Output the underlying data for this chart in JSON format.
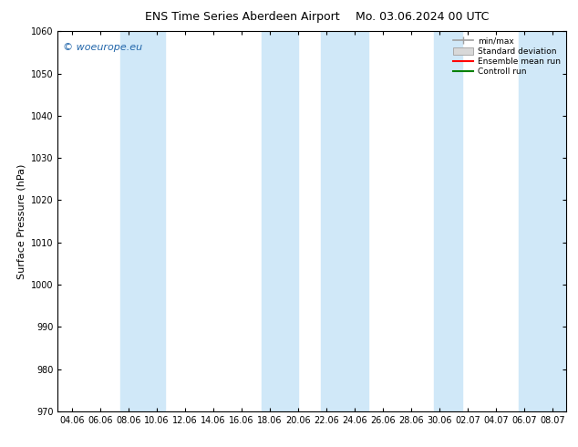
{
  "title_left": "ENS Time Series Aberdeen Airport",
  "title_right": "Mo. 03.06.2024 00 UTC",
  "ylabel": "Surface Pressure (hPa)",
  "ylim": [
    970,
    1060
  ],
  "yticks": [
    970,
    980,
    990,
    1000,
    1010,
    1020,
    1030,
    1040,
    1050,
    1060
  ],
  "xtick_labels": [
    "04.06",
    "06.06",
    "08.06",
    "10.06",
    "12.06",
    "14.06",
    "16.06",
    "18.06",
    "20.06",
    "22.06",
    "24.06",
    "26.06",
    "28.06",
    "30.06",
    "02.07",
    "04.07",
    "06.07",
    "08.07"
  ],
  "watermark": "© woeurope.eu",
  "legend_items": [
    "min/max",
    "Standard deviation",
    "Ensemble mean run",
    "Controll run"
  ],
  "bg_color": "#ffffff",
  "plot_bg_color": "#ffffff",
  "band_color": "#d0e8f8",
  "mean_color": "#ff0000",
  "control_color": "#008000",
  "minmax_color": "#a0a0a0",
  "std_color": "#c8c8c8",
  "title_fontsize": 9,
  "axis_label_fontsize": 8,
  "tick_fontsize": 7
}
